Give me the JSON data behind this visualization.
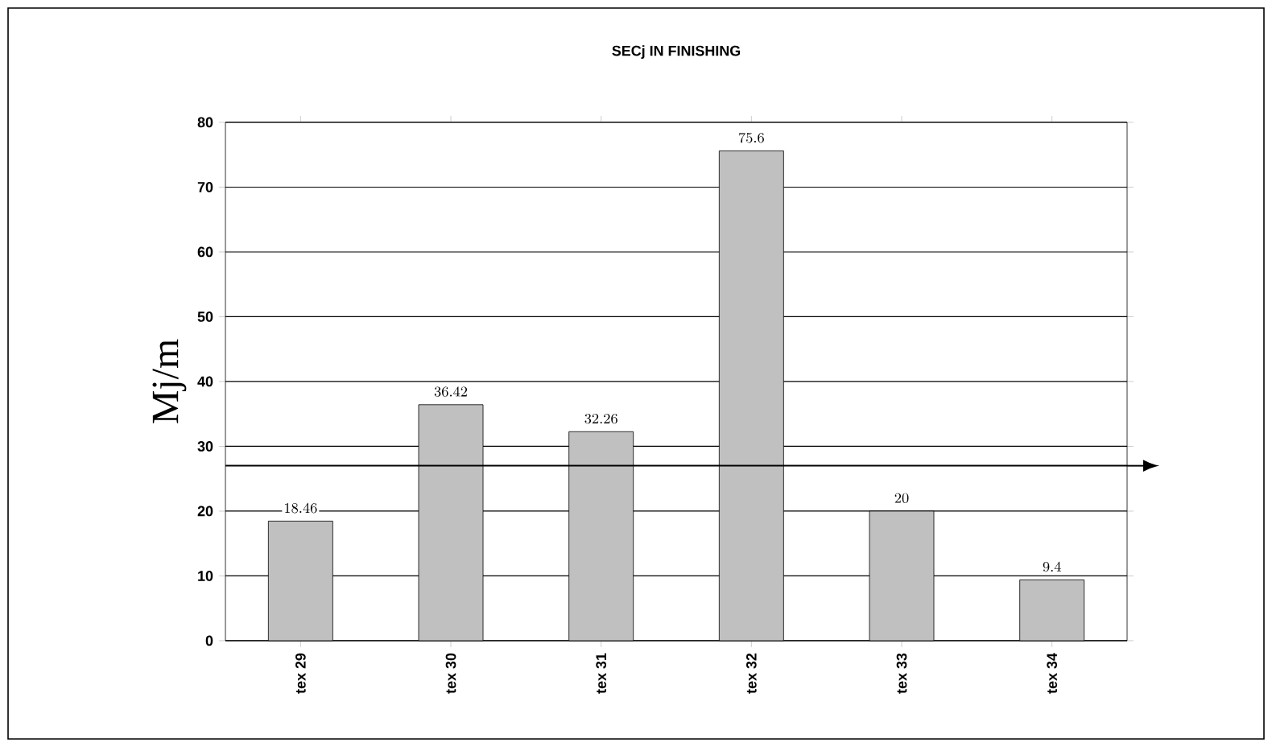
{
  "chart_data": {
    "type": "bar",
    "title": "SECj IN FINISHING",
    "ylabel": "Mj/m",
    "categories": [
      "tex 29",
      "tex 30",
      "tex 31",
      "tex 32",
      "tex 33",
      "tex 34"
    ],
    "values": [
      18.46,
      36.42,
      32.26,
      75.6,
      20,
      9.4
    ],
    "color": "#c0c0c0",
    "ylim": [
      0,
      80
    ],
    "yticks": [
      0,
      10,
      20,
      30,
      40,
      50,
      60,
      70,
      80
    ],
    "grid": "y",
    "data_labels": true,
    "ref_lines": [
      {
        "axis": "y",
        "value": 27,
        "color": "#000000"
      }
    ]
  }
}
